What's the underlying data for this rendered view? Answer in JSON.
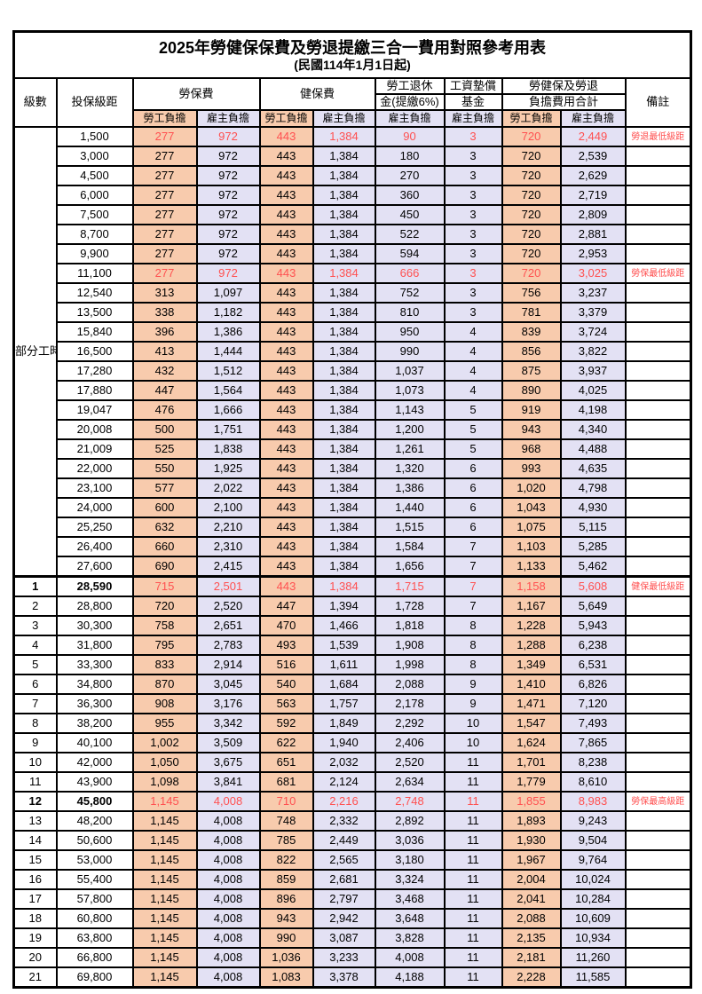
{
  "title": "2025年勞健保保費及勞退提繳三合一費用對照參考用表",
  "subtitle": "(民國114年1月1日起)",
  "colors": {
    "employee_bg": "#F8CBAD",
    "employer_bg": "#E3E1F4",
    "highlight_text": "#FF5050",
    "remark_text": "#FF4D4D",
    "border": "#000000"
  },
  "header": {
    "level": "級數",
    "bracket": "投保級距",
    "labor_fee": "勞保費",
    "health_fee": "健保費",
    "pension_line1": "勞工退休",
    "pension_line2": "金(提繳6%)",
    "wage_fund_line1": "工資墊償",
    "wage_fund_line2": "基金",
    "total_line1": "勞健保及勞退",
    "total_line2": "負擔費用合計",
    "remark": "備註",
    "employee": "勞工負擔",
    "employer": "雇主負擔"
  },
  "part_time_label": "部分工時",
  "table": {
    "columns": [
      "級數",
      "投保級距",
      "勞保費-勞工負擔",
      "勞保費-雇主負擔",
      "健保費-勞工負擔",
      "健保費-雇主負擔",
      "勞工退休金(提繳6%)-雇主負擔",
      "工資墊償基金-雇主負擔",
      "合計-勞工負擔",
      "合計-雇主負擔",
      "備註"
    ]
  },
  "rows": [
    {
      "bracket": "1,500",
      "cells": [
        "277",
        "972",
        "443",
        "1,384",
        "90",
        "3",
        "720",
        "2,449"
      ],
      "remark": "勞退最低級距",
      "highlight": true
    },
    {
      "bracket": "3,000",
      "cells": [
        "277",
        "972",
        "443",
        "1,384",
        "180",
        "3",
        "720",
        "2,539"
      ],
      "remark": ""
    },
    {
      "bracket": "4,500",
      "cells": [
        "277",
        "972",
        "443",
        "1,384",
        "270",
        "3",
        "720",
        "2,629"
      ],
      "remark": ""
    },
    {
      "bracket": "6,000",
      "cells": [
        "277",
        "972",
        "443",
        "1,384",
        "360",
        "3",
        "720",
        "2,719"
      ],
      "remark": ""
    },
    {
      "bracket": "7,500",
      "cells": [
        "277",
        "972",
        "443",
        "1,384",
        "450",
        "3",
        "720",
        "2,809"
      ],
      "remark": ""
    },
    {
      "bracket": "8,700",
      "cells": [
        "277",
        "972",
        "443",
        "1,384",
        "522",
        "3",
        "720",
        "2,881"
      ],
      "remark": ""
    },
    {
      "bracket": "9,900",
      "cells": [
        "277",
        "972",
        "443",
        "1,384",
        "594",
        "3",
        "720",
        "2,953"
      ],
      "remark": ""
    },
    {
      "bracket": "11,100",
      "cells": [
        "277",
        "972",
        "443",
        "1,384",
        "666",
        "3",
        "720",
        "3,025"
      ],
      "remark": "勞保最低級距",
      "highlight": true
    },
    {
      "bracket": "12,540",
      "cells": [
        "313",
        "1,097",
        "443",
        "1,384",
        "752",
        "3",
        "756",
        "3,237"
      ],
      "remark": ""
    },
    {
      "bracket": "13,500",
      "cells": [
        "338",
        "1,182",
        "443",
        "1,384",
        "810",
        "3",
        "781",
        "3,379"
      ],
      "remark": ""
    },
    {
      "bracket": "15,840",
      "cells": [
        "396",
        "1,386",
        "443",
        "1,384",
        "950",
        "4",
        "839",
        "3,724"
      ],
      "remark": ""
    },
    {
      "bracket": "16,500",
      "cells": [
        "413",
        "1,444",
        "443",
        "1,384",
        "990",
        "4",
        "856",
        "3,822"
      ],
      "remark": ""
    },
    {
      "bracket": "17,280",
      "cells": [
        "432",
        "1,512",
        "443",
        "1,384",
        "1,037",
        "4",
        "875",
        "3,937"
      ],
      "remark": ""
    },
    {
      "bracket": "17,880",
      "cells": [
        "447",
        "1,564",
        "443",
        "1,384",
        "1,073",
        "4",
        "890",
        "4,025"
      ],
      "remark": ""
    },
    {
      "bracket": "19,047",
      "cells": [
        "476",
        "1,666",
        "443",
        "1,384",
        "1,143",
        "5",
        "919",
        "4,198"
      ],
      "remark": ""
    },
    {
      "bracket": "20,008",
      "cells": [
        "500",
        "1,751",
        "443",
        "1,384",
        "1,200",
        "5",
        "943",
        "4,340"
      ],
      "remark": ""
    },
    {
      "bracket": "21,009",
      "cells": [
        "525",
        "1,838",
        "443",
        "1,384",
        "1,261",
        "5",
        "968",
        "4,488"
      ],
      "remark": ""
    },
    {
      "bracket": "22,000",
      "cells": [
        "550",
        "1,925",
        "443",
        "1,384",
        "1,320",
        "6",
        "993",
        "4,635"
      ],
      "remark": ""
    },
    {
      "bracket": "23,100",
      "cells": [
        "577",
        "2,022",
        "443",
        "1,384",
        "1,386",
        "6",
        "1,020",
        "4,798"
      ],
      "remark": ""
    },
    {
      "bracket": "24,000",
      "cells": [
        "600",
        "2,100",
        "443",
        "1,384",
        "1,440",
        "6",
        "1,043",
        "4,930"
      ],
      "remark": ""
    },
    {
      "bracket": "25,250",
      "cells": [
        "632",
        "2,210",
        "443",
        "1,384",
        "1,515",
        "6",
        "1,075",
        "5,115"
      ],
      "remark": ""
    },
    {
      "bracket": "26,400",
      "cells": [
        "660",
        "2,310",
        "443",
        "1,384",
        "1,584",
        "7",
        "1,103",
        "5,285"
      ],
      "remark": ""
    },
    {
      "bracket": "27,600",
      "cells": [
        "690",
        "2,415",
        "443",
        "1,384",
        "1,656",
        "7",
        "1,133",
        "5,462"
      ],
      "remark": ""
    },
    {
      "level": "1",
      "bracket": "28,590",
      "cells": [
        "715",
        "2,501",
        "443",
        "1,384",
        "1,715",
        "7",
        "1,158",
        "5,608"
      ],
      "remark": "健保最低級距",
      "highlight": true,
      "bold": true
    },
    {
      "level": "2",
      "bracket": "28,800",
      "cells": [
        "720",
        "2,520",
        "447",
        "1,394",
        "1,728",
        "7",
        "1,167",
        "5,649"
      ],
      "remark": ""
    },
    {
      "level": "3",
      "bracket": "30,300",
      "cells": [
        "758",
        "2,651",
        "470",
        "1,466",
        "1,818",
        "8",
        "1,228",
        "5,943"
      ],
      "remark": ""
    },
    {
      "level": "4",
      "bracket": "31,800",
      "cells": [
        "795",
        "2,783",
        "493",
        "1,539",
        "1,908",
        "8",
        "1,288",
        "6,238"
      ],
      "remark": ""
    },
    {
      "level": "5",
      "bracket": "33,300",
      "cells": [
        "833",
        "2,914",
        "516",
        "1,611",
        "1,998",
        "8",
        "1,349",
        "6,531"
      ],
      "remark": ""
    },
    {
      "level": "6",
      "bracket": "34,800",
      "cells": [
        "870",
        "3,045",
        "540",
        "1,684",
        "2,088",
        "9",
        "1,410",
        "6,826"
      ],
      "remark": ""
    },
    {
      "level": "7",
      "bracket": "36,300",
      "cells": [
        "908",
        "3,176",
        "563",
        "1,757",
        "2,178",
        "9",
        "1,471",
        "7,120"
      ],
      "remark": ""
    },
    {
      "level": "8",
      "bracket": "38,200",
      "cells": [
        "955",
        "3,342",
        "592",
        "1,849",
        "2,292",
        "10",
        "1,547",
        "7,493"
      ],
      "remark": ""
    },
    {
      "level": "9",
      "bracket": "40,100",
      "cells": [
        "1,002",
        "3,509",
        "622",
        "1,940",
        "2,406",
        "10",
        "1,624",
        "7,865"
      ],
      "remark": ""
    },
    {
      "level": "10",
      "bracket": "42,000",
      "cells": [
        "1,050",
        "3,675",
        "651",
        "2,032",
        "2,520",
        "11",
        "1,701",
        "8,238"
      ],
      "remark": ""
    },
    {
      "level": "11",
      "bracket": "43,900",
      "cells": [
        "1,098",
        "3,841",
        "681",
        "2,124",
        "2,634",
        "11",
        "1,779",
        "8,610"
      ],
      "remark": ""
    },
    {
      "level": "12",
      "bracket": "45,800",
      "cells": [
        "1,145",
        "4,008",
        "710",
        "2,216",
        "2,748",
        "11",
        "1,855",
        "8,983"
      ],
      "remark": "勞保最高級距",
      "highlight": true,
      "bold": true
    },
    {
      "level": "13",
      "bracket": "48,200",
      "cells": [
        "1,145",
        "4,008",
        "748",
        "2,332",
        "2,892",
        "11",
        "1,893",
        "9,243"
      ],
      "remark": ""
    },
    {
      "level": "14",
      "bracket": "50,600",
      "cells": [
        "1,145",
        "4,008",
        "785",
        "2,449",
        "3,036",
        "11",
        "1,930",
        "9,504"
      ],
      "remark": ""
    },
    {
      "level": "15",
      "bracket": "53,000",
      "cells": [
        "1,145",
        "4,008",
        "822",
        "2,565",
        "3,180",
        "11",
        "1,967",
        "9,764"
      ],
      "remark": ""
    },
    {
      "level": "16",
      "bracket": "55,400",
      "cells": [
        "1,145",
        "4,008",
        "859",
        "2,681",
        "3,324",
        "11",
        "2,004",
        "10,024"
      ],
      "remark": ""
    },
    {
      "level": "17",
      "bracket": "57,800",
      "cells": [
        "1,145",
        "4,008",
        "896",
        "2,797",
        "3,468",
        "11",
        "2,041",
        "10,284"
      ],
      "remark": ""
    },
    {
      "level": "18",
      "bracket": "60,800",
      "cells": [
        "1,145",
        "4,008",
        "943",
        "2,942",
        "3,648",
        "11",
        "2,088",
        "10,609"
      ],
      "remark": ""
    },
    {
      "level": "19",
      "bracket": "63,800",
      "cells": [
        "1,145",
        "4,008",
        "990",
        "3,087",
        "3,828",
        "11",
        "2,135",
        "10,934"
      ],
      "remark": ""
    },
    {
      "level": "20",
      "bracket": "66,800",
      "cells": [
        "1,145",
        "4,008",
        "1,036",
        "3,233",
        "4,008",
        "11",
        "2,181",
        "11,260"
      ],
      "remark": ""
    },
    {
      "level": "21",
      "bracket": "69,800",
      "cells": [
        "1,145",
        "4,008",
        "1,083",
        "3,378",
        "4,188",
        "11",
        "2,228",
        "11,585"
      ],
      "remark": ""
    }
  ]
}
